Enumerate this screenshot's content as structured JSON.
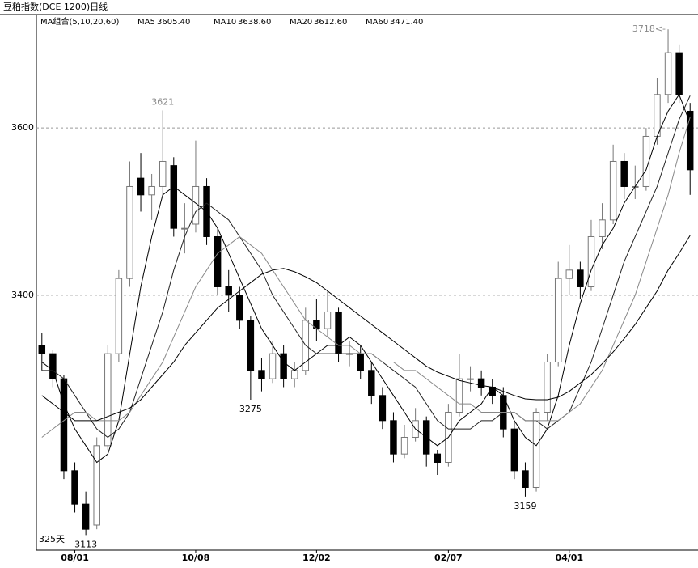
{
  "title": "豆粕指数(DCE 1200)日线",
  "indicator": "MA组合(5,10,20,60)",
  "period_label": "325天",
  "chart_data": {
    "type": "candlestick",
    "categories": [
      null,
      null,
      null,
      "08/01",
      null,
      null,
      null,
      null,
      null,
      null,
      null,
      null,
      null,
      null,
      "10/08",
      null,
      null,
      null,
      null,
      null,
      null,
      null,
      null,
      null,
      null,
      "12/02",
      null,
      null,
      null,
      null,
      null,
      null,
      null,
      null,
      null,
      null,
      null,
      "02/07",
      null,
      null,
      null,
      null,
      null,
      null,
      null,
      null,
      null,
      null,
      "04/01",
      null,
      null,
      null,
      null,
      null,
      null,
      null,
      null,
      null,
      null,
      null
    ],
    "open": [
      3340,
      3330,
      3300,
      3190,
      3150,
      3125,
      3220,
      3330,
      3420,
      3540,
      3520,
      3530,
      3555,
      3480,
      3485,
      3530,
      3470,
      3410,
      3400,
      3370,
      3310,
      3300,
      3330,
      3300,
      3310,
      3370,
      3360,
      3380,
      3330,
      3330,
      3310,
      3280,
      3250,
      3210,
      3230,
      3250,
      3210,
      3200,
      3260,
      3300,
      3300,
      3290,
      3280,
      3240,
      3190,
      3170,
      3260,
      3320,
      3420,
      3430,
      3410,
      3470,
      3490,
      3560,
      3530,
      3530,
      3590,
      3640,
      3690,
      3620
    ],
    "high": [
      3355,
      3335,
      3305,
      3200,
      3165,
      3230,
      3340,
      3430,
      3560,
      3570,
      3545,
      3621,
      3565,
      3510,
      3585,
      3540,
      3480,
      3430,
      3410,
      3375,
      3325,
      3345,
      3340,
      3320,
      3385,
      3395,
      3405,
      3385,
      3345,
      3340,
      3320,
      3290,
      3260,
      3245,
      3265,
      3255,
      3215,
      3270,
      3330,
      3315,
      3310,
      3300,
      3290,
      3250,
      3200,
      3265,
      3330,
      3440,
      3460,
      3440,
      3490,
      3510,
      3580,
      3570,
      3555,
      3600,
      3660,
      3718,
      3700,
      3630
    ],
    "low": [
      3310,
      3290,
      3180,
      3140,
      3113,
      3120,
      3215,
      3320,
      3410,
      3500,
      3490,
      3520,
      3470,
      3450,
      3475,
      3460,
      3400,
      3380,
      3360,
      3275,
      3285,
      3295,
      3290,
      3290,
      3305,
      3345,
      3350,
      3320,
      3315,
      3300,
      3270,
      3240,
      3200,
      3205,
      3225,
      3195,
      3185,
      3195,
      3255,
      3285,
      3280,
      3270,
      3230,
      3180,
      3159,
      3165,
      3250,
      3315,
      3400,
      3395,
      3405,
      3455,
      3485,
      3515,
      3515,
      3525,
      3580,
      3630,
      3630,
      3520
    ],
    "close": [
      3330,
      3300,
      3190,
      3150,
      3120,
      3220,
      3330,
      3420,
      3530,
      3520,
      3530,
      3560,
      3480,
      3480,
      3530,
      3470,
      3410,
      3400,
      3370,
      3310,
      3300,
      3330,
      3300,
      3310,
      3370,
      3360,
      3380,
      3330,
      3330,
      3310,
      3280,
      3250,
      3210,
      3230,
      3250,
      3210,
      3200,
      3260,
      3300,
      3300,
      3290,
      3280,
      3240,
      3190,
      3170,
      3260,
      3320,
      3420,
      3430,
      3410,
      3470,
      3490,
      3560,
      3530,
      3530,
      3590,
      3640,
      3690,
      3640,
      3550
    ],
    "series": [
      {
        "name": "MA5",
        "latest": "3605.40",
        "color": "#000000",
        "values": [
          3320,
          3310,
          3270,
          3240,
          3220,
          3200,
          3210,
          3250,
          3330,
          3410,
          3470,
          3520,
          3530,
          3520,
          3510,
          3500,
          3480,
          3450,
          3420,
          3390,
          3360,
          3340,
          3320,
          3310,
          3320,
          3330,
          3340,
          3340,
          3350,
          3340,
          3320,
          3300,
          3280,
          3260,
          3240,
          3230,
          3220,
          3230,
          3250,
          3260,
          3270,
          3290,
          3280,
          3250,
          3230,
          3220,
          3240,
          3280,
          3340,
          3390,
          3430,
          3460,
          3480,
          3510,
          3530,
          3550,
          3590,
          3620,
          3640,
          3605.4
        ]
      },
      {
        "name": "MA10",
        "latest": "3638.60",
        "color": "#222222",
        "values": [
          3310,
          3310,
          3300,
          3280,
          3260,
          3240,
          3230,
          3240,
          3260,
          3300,
          3340,
          3380,
          3430,
          3470,
          3500,
          3510,
          3500,
          3490,
          3470,
          3450,
          3430,
          3400,
          3380,
          3360,
          3340,
          3330,
          3330,
          3330,
          3330,
          3330,
          3330,
          3320,
          3310,
          3300,
          3290,
          3270,
          3250,
          3240,
          3240,
          3240,
          3250,
          3250,
          3260,
          3260,
          3250,
          3250,
          3240,
          3250,
          3260,
          3290,
          3320,
          3360,
          3400,
          3440,
          3470,
          3500,
          3530,
          3570,
          3610,
          3638.6
        ]
      },
      {
        "name": "MA20",
        "latest": "3612.60",
        "color": "#888888",
        "values": [
          3230,
          3240,
          3250,
          3260,
          3260,
          3250,
          3250,
          3250,
          3260,
          3280,
          3300,
          3320,
          3350,
          3380,
          3410,
          3430,
          3450,
          3460,
          3470,
          3460,
          3450,
          3430,
          3410,
          3390,
          3370,
          3360,
          3350,
          3340,
          3340,
          3330,
          3330,
          3320,
          3320,
          3310,
          3310,
          3300,
          3290,
          3280,
          3270,
          3270,
          3260,
          3260,
          3260,
          3260,
          3250,
          3250,
          3250,
          3250,
          3260,
          3270,
          3290,
          3310,
          3340,
          3370,
          3400,
          3440,
          3480,
          3520,
          3570,
          3612.6
        ]
      },
      {
        "name": "MA60",
        "latest": "3471.40",
        "color": "#000000",
        "values": [
          3280,
          3270,
          3260,
          3250,
          3250,
          3250,
          3255,
          3260,
          3265,
          3275,
          3290,
          3305,
          3320,
          3340,
          3355,
          3370,
          3385,
          3395,
          3405,
          3415,
          3425,
          3430,
          3432,
          3428,
          3422,
          3415,
          3405,
          3395,
          3385,
          3375,
          3365,
          3355,
          3345,
          3335,
          3325,
          3315,
          3308,
          3303,
          3298,
          3295,
          3292,
          3290,
          3285,
          3280,
          3276,
          3275,
          3275,
          3278,
          3285,
          3295,
          3305,
          3318,
          3332,
          3348,
          3365,
          3385,
          3405,
          3430,
          3450,
          3471.4
        ]
      }
    ],
    "annotations": [
      {
        "label": "3621",
        "candle": 11,
        "side": "above"
      },
      {
        "label": "3113",
        "candle": 4,
        "side": "below"
      },
      {
        "label": "3275",
        "candle": 19,
        "side": "below"
      },
      {
        "label": "3159",
        "candle": 44,
        "side": "below"
      },
      {
        "label": "3718<-",
        "candle": 57,
        "side": "left"
      }
    ],
    "ylim": [
      3095,
      3724
    ],
    "yticks": [
      3400,
      3600
    ],
    "grid": true
  }
}
